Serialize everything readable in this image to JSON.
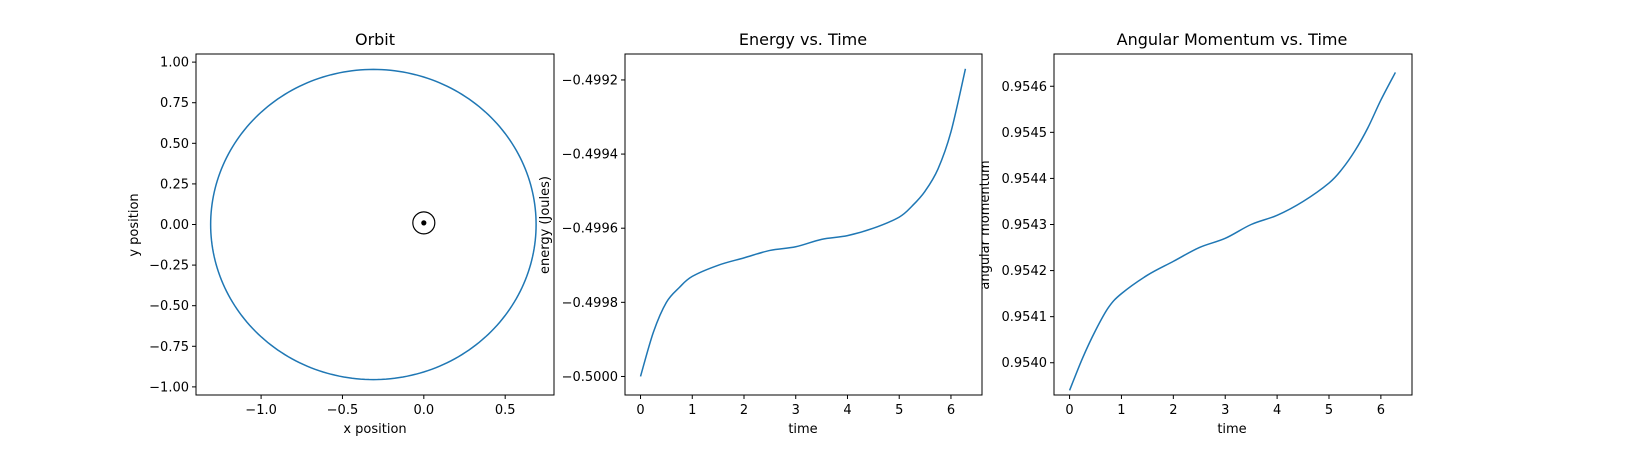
{
  "colors": {
    "series": "#1f77b4",
    "axes": "#000000",
    "background": "#ffffff"
  },
  "chart_data": [
    {
      "type": "line",
      "title": "Orbit",
      "xlabel": "x position",
      "ylabel": "y position",
      "xlim": [
        -1.4,
        0.8
      ],
      "ylim": [
        -1.05,
        1.05
      ],
      "xticks": [
        -1.0,
        -0.5,
        0.0,
        0.5
      ],
      "xtick_labels": [
        "−1.0",
        "−0.5",
        "0.0",
        "0.5"
      ],
      "yticks": [
        1.0,
        0.75,
        0.5,
        0.25,
        0.0,
        -0.25,
        -0.5,
        -0.75,
        -1.0
      ],
      "ytick_labels": [
        "1.00",
        "0.75",
        "0.50",
        "0.25",
        "0.00",
        "−0.25",
        "−0.50",
        "−0.75",
        "−1.00"
      ],
      "grid": false,
      "orbit": {
        "center_x": -0.31,
        "center_y": 0.0,
        "semi_major": 1.0,
        "semi_minor": 0.955
      },
      "central_body": {
        "x": 0.0,
        "y": 0.01,
        "marker": "sun-symbol"
      }
    },
    {
      "type": "line",
      "title": "Energy vs. Time",
      "xlabel": "time",
      "ylabel": "energy (Joules)",
      "xlim": [
        -0.3,
        6.6
      ],
      "ylim": [
        -0.50005,
        -0.49913
      ],
      "xticks": [
        0,
        1,
        2,
        3,
        4,
        5,
        6
      ],
      "xtick_labels": [
        "0",
        "1",
        "2",
        "3",
        "4",
        "5",
        "6"
      ],
      "yticks": [
        -0.4992,
        -0.4994,
        -0.4996,
        -0.4998,
        -0.5
      ],
      "ytick_labels": [
        "−0.4992",
        "−0.4994",
        "−0.4996",
        "−0.4998",
        "−0.5000"
      ],
      "grid": false,
      "series": [
        {
          "x": [
            0,
            0.25,
            0.5,
            0.75,
            1.0,
            1.5,
            2.0,
            2.5,
            3.0,
            3.5,
            4.0,
            4.5,
            5.0,
            5.25,
            5.5,
            5.75,
            6.0,
            6.28
          ],
          "y": [
            -0.5,
            -0.49988,
            -0.4998,
            -0.49976,
            -0.49973,
            -0.4997,
            -0.49968,
            -0.49966,
            -0.49965,
            -0.49963,
            -0.49962,
            -0.4996,
            -0.49957,
            -0.49954,
            -0.4995,
            -0.49944,
            -0.49934,
            -0.49917
          ]
        }
      ]
    },
    {
      "type": "line",
      "title": "Angular Momentum vs. Time",
      "xlabel": "time",
      "ylabel": "angular momentum",
      "xlim": [
        -0.3,
        6.6
      ],
      "ylim": [
        0.95393,
        0.95467
      ],
      "xticks": [
        0,
        1,
        2,
        3,
        4,
        5,
        6
      ],
      "xtick_labels": [
        "0",
        "1",
        "2",
        "3",
        "4",
        "5",
        "6"
      ],
      "yticks": [
        0.9546,
        0.9545,
        0.9544,
        0.9543,
        0.9542,
        0.9541,
        0.954
      ],
      "ytick_labels": [
        "0.9546",
        "0.9545",
        "0.9544",
        "0.9543",
        "0.9542",
        "0.9541",
        "0.9540"
      ],
      "grid": false,
      "series": [
        {
          "x": [
            0,
            0.25,
            0.5,
            0.75,
            1.0,
            1.5,
            2.0,
            2.5,
            3.0,
            3.5,
            4.0,
            4.5,
            5.0,
            5.25,
            5.5,
            5.75,
            6.0,
            6.28
          ],
          "y": [
            0.95394,
            0.95401,
            0.95407,
            0.95412,
            0.95415,
            0.95419,
            0.95422,
            0.95425,
            0.95427,
            0.9543,
            0.95432,
            0.95435,
            0.95439,
            0.95442,
            0.95446,
            0.95451,
            0.95457,
            0.95463
          ]
        }
      ]
    }
  ]
}
